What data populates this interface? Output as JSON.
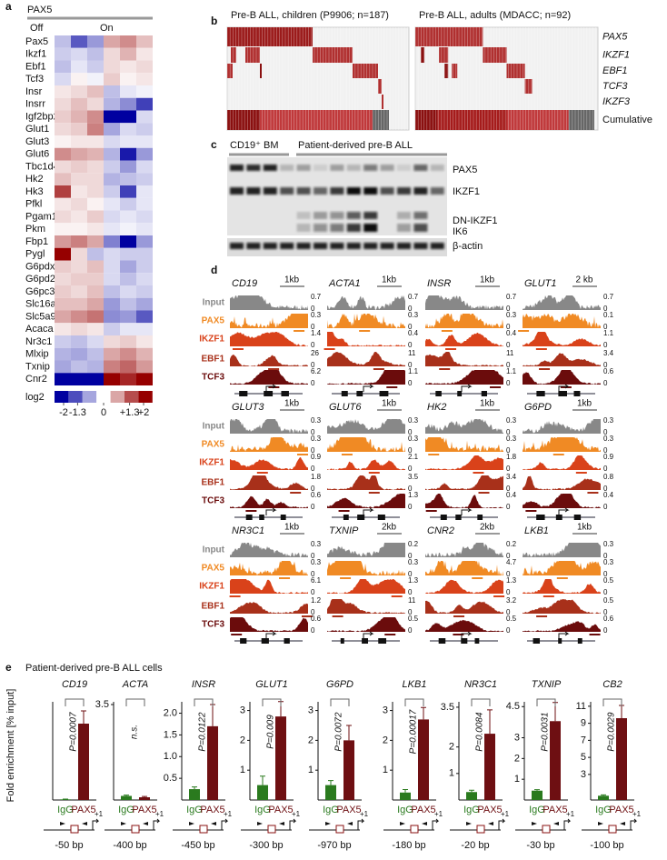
{
  "panel_a": {
    "letter": "a",
    "gene": "PAX5",
    "groups": [
      "Off",
      "On"
    ],
    "genes": [
      "Pax5",
      "Ikzf1",
      "Ebf1",
      "Tcf3",
      "Insr",
      "Insrr",
      "Igf2bp2",
      "Glut1",
      "Glut3",
      "Glut6",
      "Tbc1d4",
      "Hk2",
      "Hk3",
      "Pfkl",
      "Pgam1",
      "Pkm",
      "Fbp1",
      "Pygl",
      "G6pdx",
      "G6pd2",
      "G6pc3",
      "Slc16a1",
      "Slc5a9",
      "Acaca",
      "Nr3c1",
      "Mlxip",
      "Txnip",
      "Cnr2"
    ],
    "values": [
      [
        -0.5,
        -1.3,
        -0.8,
        0.7,
        0.9,
        0.5
      ],
      [
        -0.4,
        -0.3,
        -0.5,
        0.3,
        0.6,
        0.2
      ],
      [
        -0.5,
        -0.2,
        -0.4,
        0.3,
        0.2,
        0.3
      ],
      [
        -0.3,
        0.1,
        -0.1,
        0.4,
        0.1,
        0.2
      ],
      [
        0.2,
        0.3,
        0.5,
        -0.5,
        -0.2,
        -0.1
      ],
      [
        0.3,
        0.5,
        0.3,
        -0.6,
        -0.9,
        -1.5
      ],
      [
        0.4,
        0.6,
        0.9,
        -2,
        -2,
        -0.3
      ],
      [
        0.3,
        0.4,
        1.0,
        -0.7,
        -0.3,
        -0.4
      ],
      [
        0.1,
        0.2,
        0.2,
        -0.3,
        -0.2,
        -0.2
      ],
      [
        0.9,
        0.7,
        0.6,
        -0.6,
        -1.8,
        -0.8
      ],
      [
        0.3,
        0.4,
        0.3,
        -0.4,
        -0.8,
        -0.3
      ],
      [
        0.5,
        0.3,
        0.3,
        -0.6,
        -0.5,
        -0.4
      ],
      [
        1.5,
        0.2,
        0.3,
        -0.4,
        -1.5,
        -0.2
      ],
      [
        0.2,
        0.3,
        0.1,
        -0.2,
        -0.4,
        -0.2
      ],
      [
        0.3,
        0.2,
        0.4,
        -0.3,
        -0.2,
        -0.3
      ],
      [
        0.1,
        0.1,
        0.2,
        -0.2,
        -0.1,
        -0.2
      ],
      [
        0.8,
        1.0,
        0.7,
        -1.0,
        -2,
        -0.8
      ],
      [
        2,
        0.3,
        -0.5,
        -0.3,
        -0.4,
        -0.4
      ],
      [
        0.4,
        0.3,
        0.5,
        -0.3,
        -0.7,
        -0.4
      ],
      [
        0.3,
        0.4,
        0.4,
        -0.3,
        -0.5,
        -0.3
      ],
      [
        0.4,
        0.3,
        0.5,
        -0.5,
        -0.3,
        -0.4
      ],
      [
        0.5,
        0.5,
        0.7,
        -0.8,
        -0.5,
        -0.7
      ],
      [
        0.7,
        0.9,
        1.1,
        -0.9,
        -0.8,
        -1.3
      ],
      [
        0.2,
        0.3,
        0.2,
        -0.4,
        -0.2,
        -0.2
      ],
      [
        -0.4,
        -0.5,
        -0.3,
        0.3,
        0.4,
        0.2
      ],
      [
        -0.6,
        -0.7,
        -0.5,
        0.7,
        0.9,
        0.6
      ],
      [
        -0.7,
        -0.5,
        -0.6,
        1.0,
        1.2,
        0.8
      ],
      [
        -2,
        -2,
        -2,
        2,
        1.7,
        2
      ]
    ],
    "legend_title": "log2",
    "legend_ticks": [
      -2,
      -1.3,
      0,
      {
        "value": 1.3,
        "label": "+1.3"
      },
      {
        "value": 2,
        "label": "+2"
      }
    ]
  },
  "panel_b": {
    "letter": "b",
    "cohorts": [
      "Pre-B ALL, children (P9906; n=187)",
      "Pre-B ALL, adults (MDACC; n=92)"
    ],
    "rows": [
      "PAX5",
      "IKZF1",
      "EBF1",
      "TCF3",
      "IKZF3"
    ],
    "cumulative": "Cumulative"
  },
  "panel_c": {
    "letter": "c",
    "groups": [
      "CD19⁺ BM",
      "Patient-derived pre-B ALL"
    ],
    "bands": [
      "PAX5",
      "IKZF1",
      "DN-IKZF1",
      "IK6",
      "β-actin"
    ]
  },
  "panel_d": {
    "letter": "d",
    "tracks": [
      "Input",
      "PAX5",
      "IKZF1",
      "EBF1",
      "TCF3"
    ],
    "zero": 0,
    "loci": [
      {
        "gene": "CD19",
        "scale": "1kb",
        "maxima": [
          0.7,
          0.3,
          1.4,
          26,
          6.2
        ]
      },
      {
        "gene": "ACTA1",
        "scale": "1kb",
        "maxima": [
          0.7,
          0.3,
          0.4,
          11,
          1.1
        ]
      },
      {
        "gene": "INSR",
        "scale": "1kb",
        "maxima": [
          0.7,
          0.3,
          0.4,
          11,
          1.1
        ]
      },
      {
        "gene": "GLUT1",
        "scale": "2 kb",
        "maxima": [
          0.7,
          0.1,
          1.1,
          3.4,
          0.6
        ]
      },
      {
        "gene": "GLUT3",
        "scale": "1kb",
        "maxima": [
          0.3,
          0.3,
          0.9,
          1.8,
          0.6
        ]
      },
      {
        "gene": "GLUT6",
        "scale": "1kb",
        "maxima": [
          0.3,
          0.3,
          2.1,
          3.5,
          1.3
        ]
      },
      {
        "gene": "HK2",
        "scale": "1kb",
        "maxima": [
          0.3,
          0.3,
          1.8,
          3.4,
          0.4
        ]
      },
      {
        "gene": "G6PD",
        "scale": "1kb",
        "maxima": [
          0.3,
          0.3,
          0.9,
          0.8,
          0.4
        ]
      },
      {
        "gene": "NR3C1",
        "scale": "1kb",
        "maxima": [
          0.3,
          0.3,
          6.1,
          1.2,
          0.6
        ]
      },
      {
        "gene": "TXNIP",
        "scale": "2kb",
        "maxima": [
          0.2,
          0.3,
          1.3,
          11,
          0.5
        ]
      },
      {
        "gene": "CNR2",
        "scale": "2kb",
        "maxima": [
          0.2,
          4.7,
          1.3,
          3.2,
          0.5
        ]
      },
      {
        "gene": "LKB1",
        "scale": "1kb",
        "maxima": [
          0.3,
          0.3,
          0.5,
          0.5,
          0.6
        ]
      }
    ]
  },
  "panel_e": {
    "letter": "e",
    "title": "Patient-derived  pre-B  ALL cells",
    "ylabel": "Fold enrichment [% input]",
    "categories": [
      "IgG",
      "PAX5"
    ],
    "colors": [
      "#2a7a1e",
      "#6e0f12"
    ],
    "tss": "+1",
    "charts": [
      {
        "gene": "CD19",
        "ylim": [
          0,
          3
        ],
        "values": [
          0.02,
          2.4
        ],
        "errors": [
          0.01,
          0.4
        ],
        "p": "P=0.0007",
        "site": "-50 bp"
      },
      {
        "gene": "ACTA",
        "ylim": [
          0,
          3.5
        ],
        "yticks": [
          3.5
        ],
        "values": [
          0.15,
          0.1
        ],
        "errors": [
          0.03,
          0.03
        ],
        "p": "n.s.",
        "site": "-400 bp"
      },
      {
        "gene": "INSR",
        "ylim": [
          0,
          2.2
        ],
        "yticks": [
          0.5,
          {
            "value": 1,
            "label": "1.0"
          },
          1.5,
          {
            "value": 2,
            "label": "2.0"
          }
        ],
        "values": [
          0.25,
          1.7
        ],
        "errors": [
          0.05,
          0.5
        ],
        "p": "P=0.0122",
        "site": "-450 bp"
      },
      {
        "gene": "GLUT1",
        "ylim": [
          0,
          3.2
        ],
        "yticks": [
          1,
          2,
          3
        ],
        "values": [
          0.5,
          2.8
        ],
        "errors": [
          0.3,
          0.5
        ],
        "p": "P=0.009",
        "site": "-300 bp"
      },
      {
        "gene": "G6PD",
        "ylim": [
          0,
          3.2
        ],
        "yticks": [
          1,
          2,
          3
        ],
        "values": [
          0.5,
          2.0
        ],
        "errors": [
          0.15,
          0.5
        ],
        "p": "P=0.0072",
        "site": "-970 bp"
      },
      {
        "gene": "LKB1",
        "ylim": [
          0,
          3.2
        ],
        "yticks": [
          1,
          2,
          3
        ],
        "values": [
          0.25,
          2.7
        ],
        "errors": [
          0.1,
          0.4
        ],
        "p": "P=0.00017",
        "site": "-180 bp"
      },
      {
        "gene": "NR3C1",
        "ylim": [
          0,
          3.6
        ],
        "yticks": [
          1,
          2,
          3.5
        ],
        "values": [
          0.3,
          2.5
        ],
        "errors": [
          0.07,
          0.9
        ],
        "p": "P=0.0084",
        "site": "-20 bp"
      },
      {
        "gene": "TXNIP",
        "ylim": [
          0,
          4.6
        ],
        "yticks": [
          1,
          2,
          3,
          4.5
        ],
        "values": [
          0.45,
          3.8
        ],
        "errors": [
          0.05,
          0.9
        ],
        "p": "P=0.0031",
        "site": "-30 bp"
      },
      {
        "gene": "CB2",
        "ylim": [
          0,
          11.2
        ],
        "yticks": [
          3,
          5,
          7,
          9,
          11
        ],
        "values": [
          0.5,
          9.6
        ],
        "errors": [
          0.1,
          1.5
        ],
        "p": "P=0.0029",
        "site": "-100 bp"
      }
    ]
  }
}
